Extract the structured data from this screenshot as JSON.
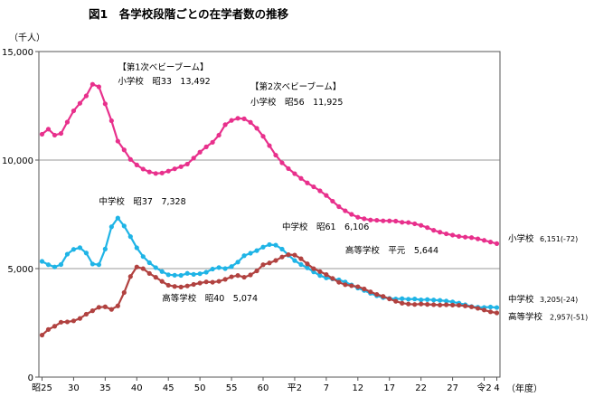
{
  "title": "図1　各学校段階ごとの在学者数の推移",
  "chart_data": {
    "type": "line",
    "title": "図1　各学校段階ごとの在学者数の推移",
    "ylabel": "（千人）",
    "xlabel": "（年度）",
    "ylim": [
      0,
      15000
    ],
    "grid": true,
    "y_ticks": [
      {
        "value": 0,
        "label": "0"
      },
      {
        "value": 5000,
        "label": "5,000"
      },
      {
        "value": 10000,
        "label": "10,000"
      },
      {
        "value": 15000,
        "label": "15,000"
      }
    ],
    "x_ticks": [
      {
        "year": 1950,
        "label": "昭25"
      },
      {
        "year": 1955,
        "label": "30"
      },
      {
        "year": 1960,
        "label": "35"
      },
      {
        "year": 1965,
        "label": "40"
      },
      {
        "year": 1970,
        "label": "45"
      },
      {
        "year": 1975,
        "label": "50"
      },
      {
        "year": 1980,
        "label": "55"
      },
      {
        "year": 1985,
        "label": "60"
      },
      {
        "year": 1990,
        "label": "平2"
      },
      {
        "year": 1995,
        "label": "7"
      },
      {
        "year": 2000,
        "label": "12"
      },
      {
        "year": 2005,
        "label": "17"
      },
      {
        "year": 2010,
        "label": "22"
      },
      {
        "year": 2015,
        "label": "27"
      },
      {
        "year": 2020,
        "label": "令2"
      },
      {
        "year": 2022,
        "label": "4"
      }
    ],
    "x": [
      1950,
      1951,
      1952,
      1953,
      1954,
      1955,
      1956,
      1957,
      1958,
      1959,
      1960,
      1961,
      1962,
      1963,
      1964,
      1965,
      1966,
      1967,
      1968,
      1969,
      1970,
      1971,
      1972,
      1973,
      1974,
      1975,
      1976,
      1977,
      1978,
      1979,
      1980,
      1981,
      1982,
      1983,
      1984,
      1985,
      1986,
      1987,
      1988,
      1989,
      1990,
      1991,
      1992,
      1993,
      1994,
      1995,
      1996,
      1997,
      1998,
      1999,
      2000,
      2001,
      2002,
      2003,
      2004,
      2005,
      2006,
      2007,
      2008,
      2009,
      2010,
      2011,
      2012,
      2013,
      2014,
      2015,
      2016,
      2017,
      2018,
      2019,
      2020,
      2021,
      2022
    ],
    "series": [
      {
        "name": "小学校",
        "color": "#e8308c",
        "values": [
          11191,
          11424,
          11149,
          11226,
          11750,
          12267,
          12616,
          12957,
          13492,
          13375,
          12591,
          11811,
          10872,
          10469,
          10031,
          9776,
          9585,
          9453,
          9383,
          9403,
          9493,
          9596,
          9696,
          9816,
          10089,
          10365,
          10610,
          10819,
          11147,
          11629,
          11827,
          11925,
          11901,
          11739,
          11465,
          11095,
          10665,
          10226,
          9873,
          9607,
          9373,
          9157,
          8947,
          8769,
          8583,
          8370,
          8106,
          7855,
          7664,
          7500,
          7366,
          7297,
          7239,
          7227,
          7201,
          7198,
          7188,
          7133,
          7122,
          7064,
          6993,
          6888,
          6765,
          6677,
          6601,
          6543,
          6483,
          6449,
          6428,
          6369,
          6301,
          6223,
          6151
        ]
      },
      {
        "name": "中学校",
        "color": "#1fb4e6",
        "values": [
          5333,
          5180,
          5076,
          5187,
          5665,
          5884,
          5963,
          5718,
          5211,
          5180,
          5900,
          6926,
          7328,
          6963,
          6475,
          5957,
          5555,
          5270,
          5044,
          4865,
          4717,
          4694,
          4688,
          4780,
          4735,
          4762,
          4833,
          4978,
          5048,
          5000,
          5094,
          5300,
          5594,
          5707,
          5829,
          5990,
          6106,
          6081,
          5896,
          5619,
          5369,
          5188,
          5036,
          4850,
          4681,
          4570,
          4527,
          4481,
          4381,
          4244,
          4104,
          3992,
          3862,
          3748,
          3664,
          3626,
          3602,
          3614,
          3592,
          3600,
          3558,
          3573,
          3552,
          3536,
          3504,
          3465,
          3406,
          3333,
          3252,
          3218,
          3211,
          3230,
          3205
        ]
      },
      {
        "name": "高等学校",
        "color": "#b14240",
        "values": [
          1935,
          2194,
          2343,
          2528,
          2545,
          2592,
          2702,
          2898,
          3057,
          3216,
          3239,
          3119,
          3282,
          3897,
          4634,
          5074,
          4997,
          4776,
          4600,
          4410,
          4232,
          4178,
          4150,
          4201,
          4270,
          4333,
          4387,
          4371,
          4414,
          4504,
          4622,
          4683,
          4601,
          4709,
          4893,
          5178,
          5259,
          5375,
          5534,
          5644,
          5623,
          5454,
          5218,
          4998,
          4862,
          4725,
          4547,
          4371,
          4258,
          4211,
          4165,
          4062,
          3929,
          3809,
          3719,
          3605,
          3494,
          3407,
          3367,
          3347,
          3369,
          3350,
          3336,
          3319,
          3334,
          3319,
          3309,
          3280,
          3236,
          3169,
          3092,
          3008,
          2957
        ]
      }
    ],
    "annotations": [
      {
        "text": "【第1次ベビーブーム】",
        "x": 1962,
        "y": 14150
      },
      {
        "text": "小学校　昭33　13,492",
        "x": 1962,
        "y": 13500
      },
      {
        "text": "【第2次ベビーブーム】",
        "x": 1983,
        "y": 13250
      },
      {
        "text": "小学校　昭56　11,925",
        "x": 1983,
        "y": 12550
      },
      {
        "text": "中学校　昭37　7,328",
        "x": 1959,
        "y": 7950
      },
      {
        "text": "中学校　昭61　6,106",
        "x": 1988,
        "y": 6800
      },
      {
        "text": "高等学校　平元　5,644",
        "x": 1998,
        "y": 5700
      },
      {
        "text": "高等学校　昭40　5,074",
        "x": 1969,
        "y": 3500
      }
    ],
    "end_labels": [
      {
        "series": "小学校",
        "name": "小学校",
        "value": "6,151(-72)",
        "y": 6250
      },
      {
        "series": "中学校",
        "name": "中学校",
        "value": "3,205(-24)",
        "y": 3450
      },
      {
        "series": "高等学校",
        "name": "高等学校",
        "value": "2,957(-51)",
        "y": 2640
      }
    ]
  }
}
